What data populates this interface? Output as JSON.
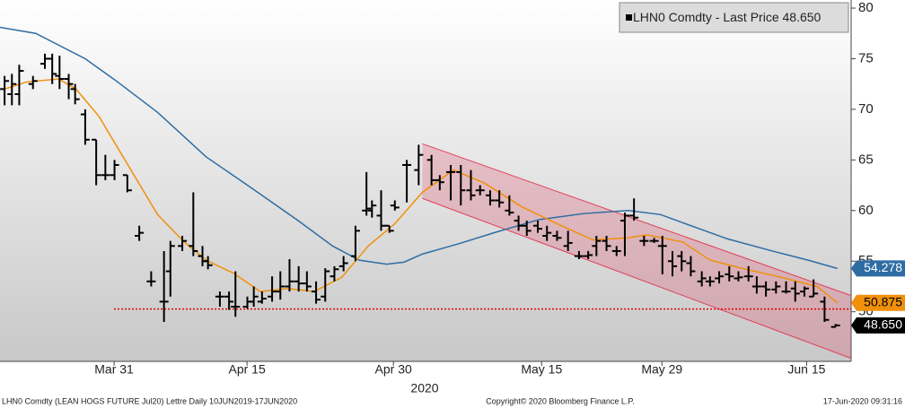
{
  "chart_data": {
    "type": "ohlc",
    "legend_name": "LHN0 Comdty - Last Price",
    "last_price": {
      "value": 48.65,
      "label": "48.650"
    },
    "price_color": "#000000",
    "ylim": [
      45.1,
      80.8
    ],
    "yticks": [
      50,
      55,
      60,
      65,
      70,
      75,
      80
    ],
    "xlim": [
      0,
      92.9
    ],
    "xticks": [
      {
        "value": 12.45,
        "label": "Mar 31"
      },
      {
        "value": 26.96,
        "label": "Apr 15"
      },
      {
        "value": 42.94,
        "label": "Apr 30"
      },
      {
        "value": 59.12,
        "label": "May 15"
      },
      {
        "value": 72.25,
        "label": "May 29"
      },
      {
        "value": 88.04,
        "label": "Jun 15"
      }
    ],
    "x_sublabel": "2020",
    "x": [
      0.5,
      1.3,
      2.1,
      3.6,
      4.9,
      5.7,
      6.5,
      7.5,
      8.2,
      9.3,
      10.5,
      11.5,
      12.5,
      13.9,
      15.2,
      16.5,
      17.9,
      18.6,
      19.9,
      21.1,
      22.1,
      22.7,
      24.0,
      25.0,
      25.7,
      27.0,
      27.7,
      28.6,
      29.7,
      30.6,
      31.6,
      32.6,
      33.5,
      34.5,
      35.5,
      36.5,
      37.5,
      38.8,
      40.0,
      40.6,
      41.6,
      42.5,
      43.1,
      44.4,
      45.7,
      47.1,
      48.0,
      49.2,
      50.3,
      51.4,
      52.4,
      53.5,
      54.5,
      55.6,
      56.6,
      57.5,
      58.7,
      59.7,
      60.8,
      62.0,
      63.2,
      64.2,
      65.1,
      66.2,
      67.3,
      68.2,
      69.2,
      70.3,
      71.4,
      72.3,
      73.4,
      74.4,
      75.4,
      76.6,
      77.5,
      78.5,
      79.6,
      80.6,
      81.7,
      82.6,
      83.6,
      84.7,
      85.8,
      86.8,
      87.8,
      88.8,
      90.0,
      91.2
    ],
    "open": [
      72,
      71.5,
      71.5,
      72.5,
      74.5,
      75,
      73.3,
      73,
      72,
      69.5,
      67,
      63.5,
      63.5,
      63.5,
      57.5,
      53,
      51,
      54,
      56.5,
      56.5,
      55.5,
      55,
      51.5,
      51.5,
      50.5,
      50.5,
      51,
      51,
      51.5,
      52,
      52.5,
      53,
      52.8,
      52,
      51.5,
      53.5,
      54.5,
      55.5,
      60,
      60,
      59.5,
      58.5,
      60.5,
      64.5,
      64,
      65,
      63,
      63.8,
      63.8,
      62,
      62,
      61.5,
      61,
      60,
      59,
      58.5,
      58.5,
      57.5,
      57.5,
      56.5,
      55.5,
      55.5,
      56.5,
      57,
      56,
      59,
      59.5,
      57,
      57,
      56.5,
      55,
      55.5,
      54.8,
      53,
      53,
      53.3,
      53.7,
      53.3,
      53.5,
      52.5,
      52.5,
      52.2,
      52,
      52.3,
      52,
      51.5,
      51,
      48.5
    ],
    "high": [
      73.3,
      73.5,
      74.4,
      73.3,
      75.5,
      75.5,
      75.3,
      73.5,
      72.5,
      70,
      67,
      65.5,
      65,
      63.5,
      58.5,
      54,
      56,
      57,
      57.5,
      61.8,
      56.5,
      55.5,
      52,
      52,
      54,
      51.5,
      52.5,
      52,
      53.5,
      54,
      55.2,
      54.5,
      54,
      53,
      54.3,
      54.5,
      55.5,
      58.5,
      63.8,
      61,
      62,
      58.5,
      61,
      65,
      66.5,
      65.5,
      63.5,
      64.5,
      64.5,
      64,
      62.5,
      62,
      62,
      61.5,
      59.5,
      59,
      59,
      58.5,
      58,
      58,
      56,
      56,
      57.5,
      57.5,
      56.5,
      59.8,
      61.2,
      57.5,
      57.3,
      57.5,
      56,
      56,
      55.5,
      54,
      53.5,
      54,
      54.5,
      54,
      54.5,
      53.5,
      53,
      53,
      53,
      53,
      52.5,
      53.2,
      51.5,
      48.8
    ],
    "low": [
      70.4,
      70.4,
      70.4,
      72,
      74,
      72.5,
      72,
      71,
      70.5,
      66.5,
      62.5,
      63,
      63,
      61.8,
      57,
      52.5,
      49,
      51.5,
      56,
      55.5,
      54.5,
      54.2,
      50.5,
      50.2,
      49.5,
      50.3,
      50.5,
      50.8,
      51,
      51.2,
      52,
      52,
      52,
      50.8,
      51,
      53,
      54,
      55,
      59.5,
      59.3,
      58,
      57.8,
      60,
      60.8,
      62.5,
      62.5,
      62,
      61,
      60.5,
      61,
      61.5,
      60.5,
      60.3,
      59.5,
      58,
      57.5,
      57.8,
      57,
      57,
      56,
      55.2,
      55.2,
      55.5,
      56,
      55.5,
      55.5,
      59,
      56.5,
      56.8,
      53.7,
      53.5,
      54,
      53.5,
      52.5,
      52.5,
      52.8,
      53,
      53,
      53,
      51.8,
      51.5,
      51.8,
      51.8,
      51,
      51.5,
      51.5,
      49,
      48.5
    ],
    "close": [
      72.8,
      72.5,
      73.8,
      72.8,
      75,
      73.5,
      73,
      72.5,
      71,
      67,
      63.5,
      63.5,
      64.5,
      62,
      57.8,
      53,
      51,
      56.5,
      57,
      56,
      55,
      54.6,
      51.5,
      51,
      50.5,
      51,
      51.5,
      51.3,
      52,
      52.5,
      53,
      52.8,
      52.5,
      51.2,
      54,
      54.2,
      54.8,
      58,
      60.2,
      60.5,
      58.5,
      58,
      60.3,
      64.5,
      65.5,
      63,
      62.8,
      63.8,
      62,
      61.5,
      62,
      61,
      60.8,
      59.8,
      58.5,
      58,
      58.2,
      57.8,
      57.3,
      56.8,
      55.5,
      55.6,
      57,
      56.5,
      56,
      59.5,
      59.3,
      57,
      57,
      56.5,
      54.5,
      55,
      54,
      53.3,
      53,
      53.5,
      53.5,
      53.4,
      53.5,
      52.5,
      52.2,
      52.5,
      52,
      51.8,
      52.3,
      51.8,
      49.2,
      48.65
    ],
    "lines": [
      {
        "color": "#2e6da4",
        "x": [
          0,
          3.9,
          9.3,
          12.7,
          17.2,
          22.5,
          27.5,
          32.4,
          36.3,
          39.2,
          42.2,
          44.1,
          46.1,
          50,
          53.9,
          58.8,
          63.7,
          68.6,
          72.1,
          74.5,
          79.4,
          84.3,
          88.2,
          91.4
        ],
        "values": [
          78.1,
          77.5,
          75,
          72.8,
          69.7,
          65.3,
          62.2,
          59.1,
          56.5,
          55.1,
          54.7,
          54.9,
          55.7,
          56.7,
          57.8,
          59.1,
          59.7,
          60,
          59.6,
          58.8,
          57.2,
          56,
          55.1,
          54.278
        ],
        "last_value": 54.278
      },
      {
        "color": "#f0900c",
        "x": [
          0.5,
          2.9,
          6.4,
          8.3,
          10.8,
          13.7,
          17.2,
          20.1,
          22.5,
          25.5,
          28.4,
          31.4,
          34.3,
          37.3,
          40.2,
          43.1,
          46.1,
          49.5,
          52.9,
          56.9,
          60.8,
          64.7,
          68.6,
          70.6,
          74.5,
          77.5,
          81.4,
          85.3,
          89.2,
          91.4
        ],
        "values": [
          72,
          72.7,
          73,
          72,
          69.3,
          64.9,
          59.6,
          56.9,
          55.1,
          53.8,
          52,
          52.3,
          52,
          53.4,
          56.5,
          58.7,
          61.8,
          64,
          62.7,
          60.4,
          58.7,
          57.1,
          57.3,
          57.6,
          56.9,
          55.1,
          54.2,
          53.4,
          52.5,
          50.875
        ],
        "last_value": 50.875
      }
    ],
    "reference_line": {
      "value": 50.27,
      "color": "#e00000",
      "x_start": 12.45
    },
    "channel": {
      "x": [
        46.1,
        92.9
      ],
      "upper": [
        66.6,
        51.6
      ],
      "lower": [
        61.2,
        45.4
      ],
      "color": "#e0405a"
    },
    "footer": {
      "left": "LHN0 Comdty (LEAN HOGS FUTURE  Jul20) Lettre  Daily 10JUN2019-17JUN2020",
      "center": "Copyright© 2020 Bloomberg Finance L.P.",
      "right": "17-Jun-2020 09:31:16"
    }
  }
}
